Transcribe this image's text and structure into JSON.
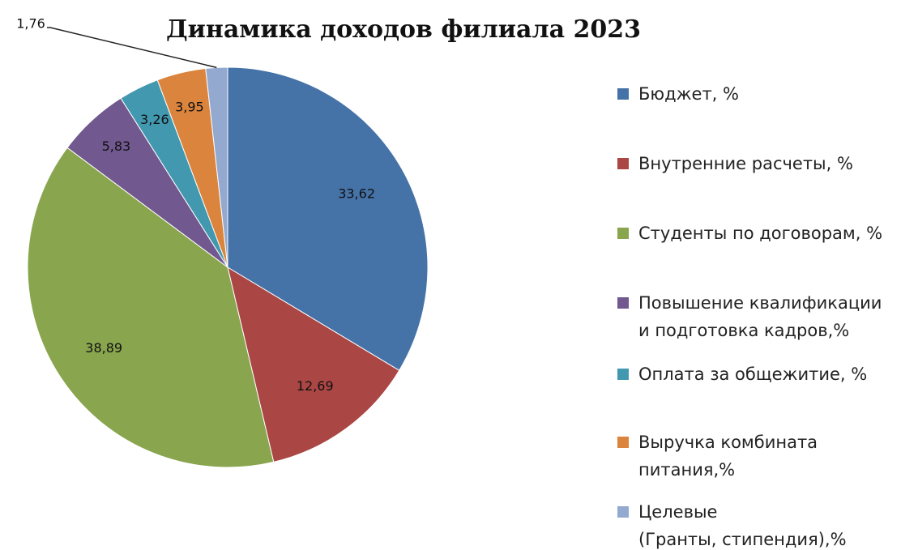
{
  "chart_data": {
    "type": "pie",
    "title": "Динамика доходов филиала 2023",
    "categories": [
      "Бюджет, %",
      "Внутренние расчеты, %",
      "Студенты по договорам, %",
      "Повышение квалификации\nи подготовка кадров,%",
      "Оплата за общежитие, %",
      "Выручка комбината\nпитания,%",
      "Целевые\n(Гранты, стипендия),%"
    ],
    "values": [
      33.62,
      12.69,
      38.89,
      5.83,
      3.26,
      3.95,
      1.76
    ],
    "value_labels": [
      "33,62",
      "12,69",
      "38,89",
      "5,83",
      "3,26",
      "3,95",
      "1,76"
    ],
    "colors": [
      "#4572a7",
      "#aa4643",
      "#89a54e",
      "#71588f",
      "#4198af",
      "#db843d",
      "#93a9cf"
    ],
    "legend": "right"
  }
}
